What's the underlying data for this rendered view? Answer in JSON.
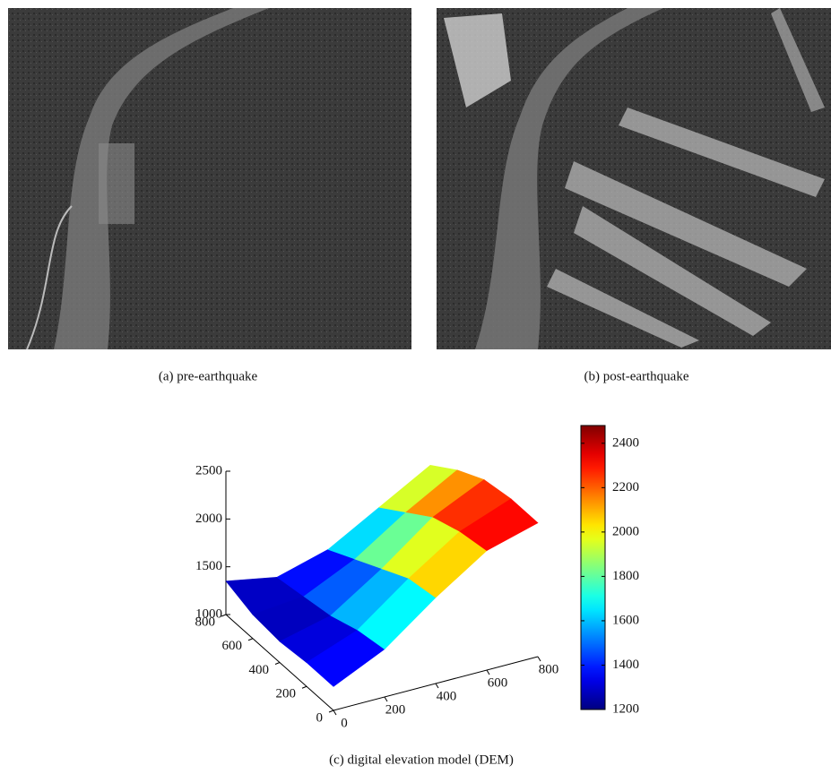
{
  "panels": [
    {
      "caption": "(a) pre-earthquake"
    },
    {
      "caption": "(b) post-earthquake"
    }
  ],
  "chart_data": {
    "type": "surface",
    "caption": "(c) digital elevation model (DEM)",
    "x": [
      0,
      200,
      400,
      600,
      800
    ],
    "y": [
      0,
      200,
      400,
      600,
      800
    ],
    "z": [
      [
        1250,
        1500,
        1900,
        2250,
        2400
      ],
      [
        1250,
        1450,
        1850,
        2200,
        2400
      ],
      [
        1220,
        1350,
        1700,
        2100,
        2350
      ],
      [
        1250,
        1300,
        1550,
        1900,
        2200
      ],
      [
        1350,
        1250,
        1400,
        1700,
        2000
      ]
    ],
    "xlim": [
      0,
      800
    ],
    "xticks": [
      0,
      200,
      400,
      600,
      800
    ],
    "ylim": [
      0,
      800
    ],
    "yticks": [
      0,
      200,
      400,
      600,
      800
    ],
    "zlim": [
      1000,
      2500
    ],
    "zticks": [
      1000,
      1500,
      2000,
      2500
    ],
    "colormap": "jet",
    "colorbar": {
      "lim": [
        1200,
        2480
      ],
      "ticks": [
        1200,
        1400,
        1600,
        1800,
        2000,
        2200,
        2400
      ]
    }
  }
}
